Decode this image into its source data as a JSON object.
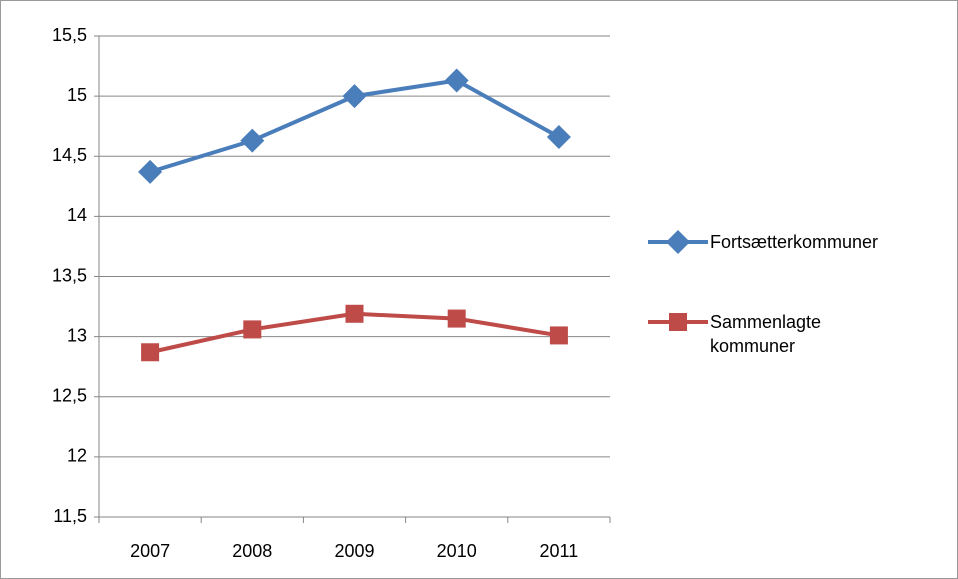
{
  "chart_data": {
    "type": "line",
    "categories": [
      "2007",
      "2008",
      "2009",
      "2010",
      "2011"
    ],
    "series": [
      {
        "name": "Fortsætterkommuner",
        "color": "#4a7ebb",
        "marker": "diamond",
        "values": [
          14.37,
          14.63,
          15.0,
          15.13,
          14.66
        ]
      },
      {
        "name": "Sammenlagte kommuner",
        "color": "#be4b48",
        "marker": "square",
        "values": [
          12.87,
          13.06,
          13.19,
          13.15,
          13.01
        ]
      }
    ],
    "ylim": [
      11.5,
      15.5
    ],
    "yticks": [
      {
        "value": 11.5,
        "label": "11,5"
      },
      12,
      {
        "value": 12.5,
        "label": "12,5"
      },
      13,
      {
        "value": 13.5,
        "label": "13,5"
      },
      14,
      {
        "value": 14.5,
        "label": "14,5"
      },
      15,
      {
        "value": 15.5,
        "label": "15,5"
      }
    ],
    "grid": true,
    "legend": "right"
  }
}
